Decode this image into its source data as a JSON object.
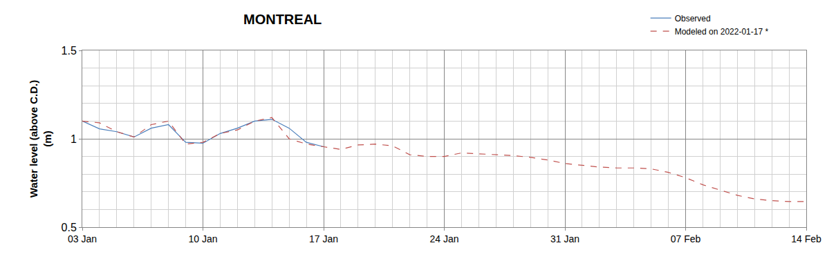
{
  "chart_data": {
    "type": "line",
    "title": "MONTREAL",
    "ylabel": [
      "Water level (above C.D.)",
      "(m)"
    ],
    "categories": [
      "03 Jan",
      null,
      null,
      null,
      null,
      null,
      null,
      "10 Jan",
      null,
      null,
      null,
      null,
      null,
      null,
      "17 Jan",
      null,
      null,
      null,
      null,
      null,
      null,
      "24 Jan",
      null,
      null,
      null,
      null,
      null,
      null,
      "31 Jan",
      null,
      null,
      null,
      null,
      null,
      null,
      "07 Feb",
      null,
      null,
      null,
      null,
      null,
      null,
      "14 Feb"
    ],
    "series": [
      {
        "name": "Observed",
        "color": "#4a7ebb",
        "line_style": "solid",
        "values": [
          1.1,
          1.056,
          1.04,
          1.01,
          1.06,
          1.08,
          0.98,
          0.975,
          1.03,
          1.06,
          1.1,
          1.11,
          1.06,
          0.98,
          0.955,
          null,
          null,
          null,
          null,
          null,
          null,
          null,
          null,
          null,
          null,
          null,
          null,
          null,
          null,
          null,
          null,
          null,
          null,
          null,
          null,
          null,
          null,
          null,
          null,
          null,
          null,
          null,
          null
        ]
      },
      {
        "name": "Modeled on 2022-01-17 *",
        "color": "#c0504d",
        "line_style": "dash",
        "values": [
          1.1,
          1.09,
          1.04,
          1.01,
          1.08,
          1.1,
          0.97,
          0.98,
          1.03,
          1.05,
          1.1,
          1.12,
          1.0,
          0.97,
          0.955,
          0.94,
          0.965,
          0.97,
          0.96,
          0.91,
          0.9,
          0.9,
          0.92,
          0.915,
          0.91,
          0.905,
          0.895,
          0.88,
          0.86,
          0.85,
          0.84,
          0.835,
          0.835,
          0.83,
          0.81,
          0.78,
          0.74,
          0.71,
          0.68,
          0.66,
          0.65,
          0.645,
          0.645
        ]
      }
    ],
    "ylim": [
      0.5,
      1.5
    ],
    "yticks": [
      0.5,
      1,
      1.5
    ],
    "grid": true,
    "legend": "top right"
  }
}
